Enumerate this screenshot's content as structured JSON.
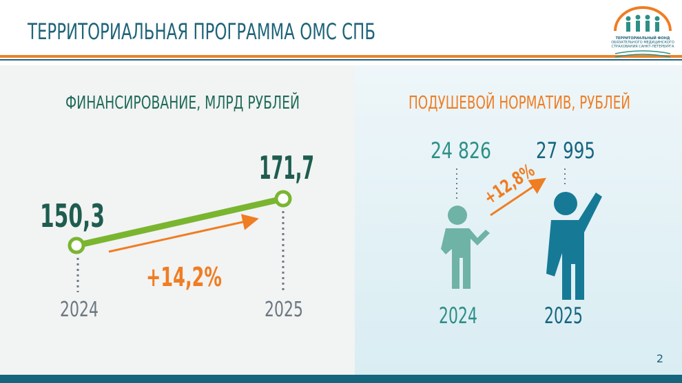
{
  "header": {
    "title": "ТЕРРИТОРИАЛЬНАЯ ПРОГРАММА ОМС СПБ",
    "logo_text": [
      "ТЕРРИТОРИАЛЬНЫЙ ФОНД",
      "ОБЯЗАТЕЛЬНОГО МЕДИЦИНСКОГО",
      "СТРАХОВАНИЯ САНКТ-ПЕТЕРБУРГА"
    ]
  },
  "financing": {
    "title": "ФИНАНСИРОВАНИЕ, МЛРД РУБЛЕЙ",
    "years": [
      "2024",
      "2025"
    ],
    "values": [
      "150,3",
      "171,7"
    ],
    "change": "+14,2%"
  },
  "per_capita": {
    "title": "ПОДУШЕВОЙ НОРМАТИВ, РУБЛЕЙ",
    "years": [
      "2024",
      "2025"
    ],
    "values": [
      "24 826",
      "27 995"
    ],
    "change": "+12,8%"
  },
  "page_number": "2"
}
